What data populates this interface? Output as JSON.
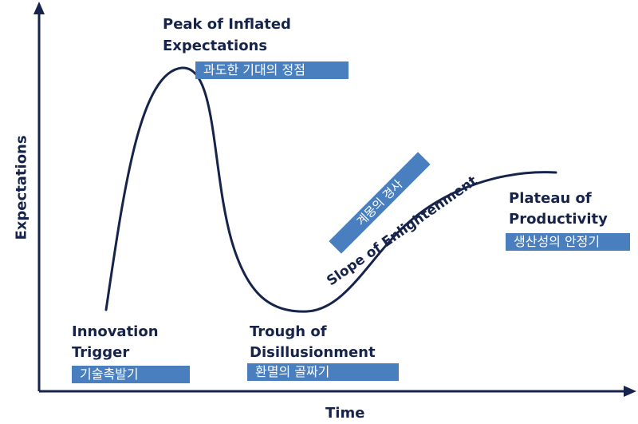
{
  "axes": {
    "y_title": "Expectations",
    "x_title": "Time"
  },
  "phases": {
    "innovation_trigger": {
      "title_line1": "Innovation",
      "title_line2": "Trigger",
      "tag": "기술촉발기"
    },
    "peak": {
      "title_line1": "Peak of Inflated",
      "title_line2": "Expectations",
      "tag": "과도한 기대의 정점"
    },
    "trough": {
      "title_line1": "Trough of",
      "title_line2": "Disillusionment",
      "tag": "환멸의 골짜기"
    },
    "slope": {
      "title": "Slope of Enlightenment",
      "tag": "계몽의 경사"
    },
    "plateau": {
      "title_line1": "Plateau of",
      "title_line2": "Productivity",
      "tag": "생산성의 안정기"
    }
  },
  "colors": {
    "ink": "#16234a",
    "tag_background": "#4a7fbf",
    "tag_text": "#ffffff"
  }
}
